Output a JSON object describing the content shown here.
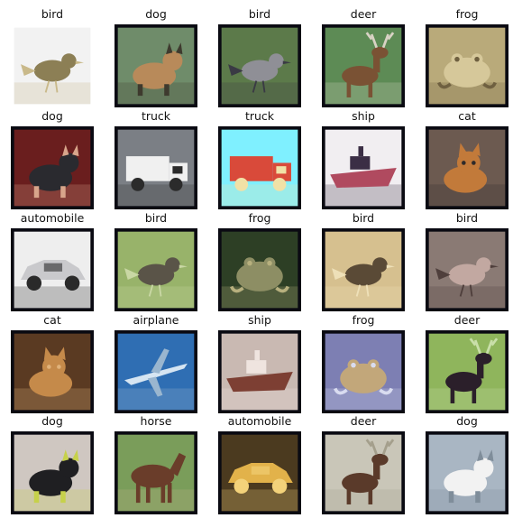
{
  "images": [
    {
      "label": "bird",
      "icon": "bird-photo",
      "bg": "#f2f2f2",
      "fg": "#8c7f55",
      "accent": "#c9b98a",
      "frame": "#ffffff"
    },
    {
      "label": "dog",
      "icon": "dog-photo",
      "bg": "#6f8c6a",
      "fg": "#b88a5a",
      "accent": "#3e3a2e",
      "frame": "#0a0a12"
    },
    {
      "label": "bird",
      "icon": "bird-photo",
      "bg": "#5c7a4a",
      "fg": "#8f8f96",
      "accent": "#3a3a44",
      "frame": "#0a0a12"
    },
    {
      "label": "deer",
      "icon": "deer-photo",
      "bg": "#5d8b55",
      "fg": "#7a5234",
      "accent": "#d8d2c4",
      "frame": "#0a0a12"
    },
    {
      "label": "frog",
      "icon": "frog-photo",
      "bg": "#b9aa7a",
      "fg": "#d6c89a",
      "accent": "#6f6040",
      "frame": "#0a0a12"
    },
    {
      "label": "dog",
      "icon": "dog-photo",
      "bg": "#6a1e1e",
      "fg": "#2a2a2f",
      "accent": "#d8a58b",
      "frame": "#0a0a12"
    },
    {
      "label": "truck",
      "icon": "truck-photo",
      "bg": "#7b7f85",
      "fg": "#f0f0f0",
      "accent": "#2b2b2b",
      "frame": "#0a0a12"
    },
    {
      "label": "truck",
      "icon": "truck-photo",
      "bg": "#7ff0ff",
      "fg": "#d94a3a",
      "accent": "#f1e1a6",
      "frame": "#0a0a12"
    },
    {
      "label": "ship",
      "icon": "ship-photo",
      "bg": "#f1eef1",
      "fg": "#b04a5f",
      "accent": "#3b2e45",
      "frame": "#0a0a12"
    },
    {
      "label": "cat",
      "icon": "cat-photo",
      "bg": "#6c5a50",
      "fg": "#c27a3a",
      "accent": "#2e2a2a",
      "frame": "#0a0a12"
    },
    {
      "label": "automobile",
      "icon": "car-photo",
      "bg": "#eeeeee",
      "fg": "#c9c9cc",
      "accent": "#2a2a2a",
      "frame": "#0a0a12"
    },
    {
      "label": "bird",
      "icon": "bird-photo",
      "bg": "#98b36a",
      "fg": "#5a5448",
      "accent": "#c9d7a4",
      "frame": "#0a0a12"
    },
    {
      "label": "frog",
      "icon": "frog-photo",
      "bg": "#2d3f25",
      "fg": "#8d8e64",
      "accent": "#b7b07e",
      "frame": "#0a0a12"
    },
    {
      "label": "bird",
      "icon": "bird-photo",
      "bg": "#d6c08f",
      "fg": "#5a4a36",
      "accent": "#eee0b8",
      "frame": "#0a0a12"
    },
    {
      "label": "bird",
      "icon": "bird-photo",
      "bg": "#8a7a74",
      "fg": "#c2a8a1",
      "accent": "#4f3f3c",
      "frame": "#0a0a12"
    },
    {
      "label": "cat",
      "icon": "cat-photo",
      "bg": "#5a3a22",
      "fg": "#c58a4a",
      "accent": "#e0b27a",
      "frame": "#0a0a12"
    },
    {
      "label": "airplane",
      "icon": "airplane-photo",
      "bg": "#2f6eb3",
      "fg": "#d6e5f2",
      "accent": "#9ab6cf",
      "frame": "#0a0a12"
    },
    {
      "label": "ship",
      "icon": "ship-photo",
      "bg": "#c9b9b2",
      "fg": "#7d3f33",
      "accent": "#efe4df",
      "frame": "#0a0a12"
    },
    {
      "label": "frog",
      "icon": "frog-photo",
      "bg": "#7d7fb3",
      "fg": "#c2a77a",
      "accent": "#d9dcf0",
      "frame": "#0a0a12"
    },
    {
      "label": "deer",
      "icon": "deer-photo",
      "bg": "#8fb55c",
      "fg": "#2b1f2a",
      "accent": "#c9dfa9",
      "frame": "#0a0a12"
    },
    {
      "label": "dog",
      "icon": "dog-photo",
      "bg": "#cfc7c1",
      "fg": "#1f1f22",
      "accent": "#c6d14a",
      "frame": "#0a0a12"
    },
    {
      "label": "horse",
      "icon": "horse-photo",
      "bg": "#7a9d5a",
      "fg": "#6a3d2a",
      "accent": "#c2b38d",
      "frame": "#0a0a12"
    },
    {
      "label": "automobile",
      "icon": "car-photo",
      "bg": "#4b3a1f",
      "fg": "#e2b24a",
      "accent": "#f3d27a",
      "frame": "#0a0a12"
    },
    {
      "label": "deer",
      "icon": "deer-photo",
      "bg": "#c9c6b8",
      "fg": "#5a3a2a",
      "accent": "#a49f8c",
      "frame": "#0a0a12"
    },
    {
      "label": "dog",
      "icon": "dog-photo",
      "bg": "#a9b6c3",
      "fg": "#f2f2f2",
      "accent": "#7f8d9a",
      "frame": "#0a0a12"
    }
  ]
}
